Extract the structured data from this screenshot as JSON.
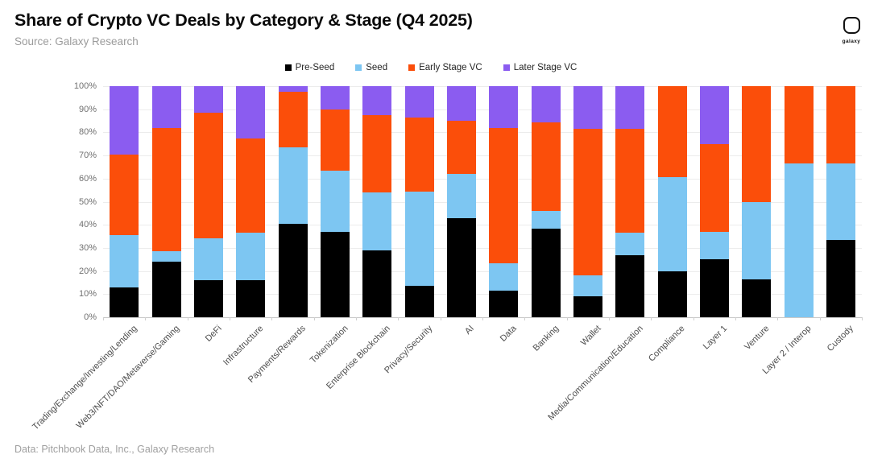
{
  "header": {
    "title": "Share of Crypto VC Deals by Category & Stage (Q4 2025)",
    "subtitle": "Source: Galaxy Research",
    "logo_text": "galaxy"
  },
  "footer": {
    "text": "Data: Pitchbook Data, Inc., Galaxy Research"
  },
  "colors": {
    "pre_seed": "#000000",
    "seed": "#7DC6F2",
    "early_stage": "#FB4E0A",
    "later_stage": "#8B5CF0",
    "gridline": "#ececec",
    "axis_line": "#c9c9c9"
  },
  "chart_data": {
    "type": "bar",
    "stacked": true,
    "normalized_percent": true,
    "title": "Share of Crypto VC Deals by Category & Stage (Q4 2025)",
    "xlabel": "",
    "ylabel": "",
    "ylim": [
      0,
      100
    ],
    "grid": true,
    "legend_position": "top",
    "y_ticks": [
      "0%",
      "10%",
      "20%",
      "30%",
      "40%",
      "50%",
      "60%",
      "70%",
      "80%",
      "90%",
      "100%"
    ],
    "categories": [
      "Trading/Exchange/Investing/Lending",
      "Web3/NFT/DAO/Metaverse/Gaming",
      "DeFi",
      "Infrastructure",
      "Payments/Rewards",
      "Tokenization",
      "Enterprise Blockchain",
      "Privacy/Security",
      "AI",
      "Data",
      "Banking",
      "Wallet",
      "Media/Communication/Education",
      "Compliance",
      "Layer 1",
      "Venture",
      "Layer 2 / Interop",
      "Custody"
    ],
    "series": [
      {
        "name": "Pre-Seed",
        "color": "#000000",
        "values": [
          13,
          24,
          16,
          16,
          40.5,
          37,
          29,
          13.5,
          43,
          11.5,
          38.5,
          9,
          27,
          20,
          25,
          16.5,
          0,
          33.5
        ]
      },
      {
        "name": "Seed",
        "color": "#7DC6F2",
        "values": [
          22.5,
          4.5,
          18,
          20.5,
          33,
          26.5,
          25,
          41,
          19,
          12,
          7.5,
          9,
          9.5,
          40.5,
          12,
          33.5,
          66.5,
          33
        ]
      },
      {
        "name": "Early Stage VC",
        "color": "#FB4E0A",
        "values": [
          35,
          53.5,
          54.5,
          41,
          24,
          26.5,
          33.5,
          32,
          23,
          58.5,
          38.5,
          63.5,
          45,
          39.5,
          38,
          50,
          33.5,
          33.5
        ]
      },
      {
        "name": "Later Stage VC",
        "color": "#8B5CF0",
        "values": [
          29.5,
          18,
          11.5,
          22.5,
          2.5,
          10,
          12.5,
          13.5,
          15,
          18,
          15.5,
          18.5,
          18.5,
          0,
          25,
          0,
          0,
          0
        ]
      }
    ]
  }
}
